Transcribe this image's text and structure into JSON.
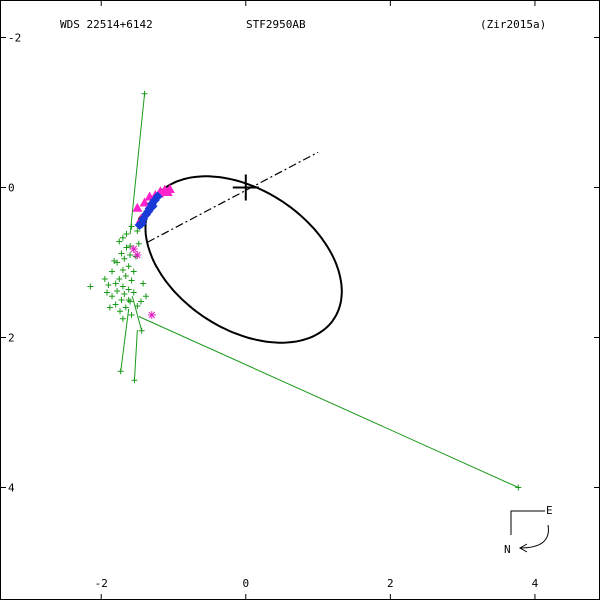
{
  "header": {
    "left": "WDS 22514+6142",
    "center": "STF2950AB",
    "right": "(Zir2015a)"
  },
  "compass": {
    "east": "E",
    "north": "N"
  },
  "chart_data": {
    "type": "scatter",
    "title": "",
    "xlabel": "",
    "ylabel": "",
    "xlim": [
      -3.4,
      4.9
    ],
    "ylim": [
      -2.5,
      5.5
    ],
    "grid": false,
    "x_ticks": [
      {
        "value": -2,
        "label": "-2"
      },
      {
        "value": 0,
        "label": "0"
      },
      {
        "value": 2,
        "label": "2"
      },
      {
        "value": 4,
        "label": "4"
      }
    ],
    "y_ticks": [
      {
        "value": -2,
        "label": "-2"
      },
      {
        "value": 0,
        "label": "0"
      },
      {
        "value": 2,
        "label": "2"
      },
      {
        "value": 4,
        "label": "4"
      }
    ],
    "primary_star": [
      0,
      0
    ],
    "orbit": {
      "center": [
        -0.03,
        0.96
      ],
      "a": 1.48,
      "b": 0.94,
      "angle_deg": 31
    },
    "line_of_nodes": [
      [
        -1.36,
        0.73
      ],
      [
        1.0,
        -0.47
      ]
    ],
    "periastron_line": [
      [
        1.0,
        -0.47
      ],
      [
        -1.36,
        0.73
      ]
    ],
    "outlier_tracks": [
      {
        "obs": [
          -1.4,
          -1.25
        ],
        "fit": [
          -1.6,
          0.62
        ]
      },
      {
        "obs": [
          -1.73,
          2.45
        ],
        "fit": [
          -1.62,
          1.62
        ]
      },
      {
        "obs": [
          -1.54,
          2.57
        ],
        "fit": [
          -1.5,
          1.9
        ]
      },
      {
        "obs": [
          -1.44,
          1.91
        ],
        "fit": [
          -1.57,
          1.45
        ]
      },
      {
        "obs": [
          3.77,
          4.0
        ],
        "fit": [
          -1.48,
          1.72
        ]
      }
    ],
    "micrometer_points": [
      [
        -1.7,
        0.67
      ],
      [
        -1.75,
        0.72
      ],
      [
        -1.65,
        0.8
      ],
      [
        -1.72,
        0.88
      ],
      [
        -1.6,
        0.9
      ],
      [
        -1.68,
        0.95
      ],
      [
        -1.78,
        1.0
      ],
      [
        -1.62,
        1.05
      ],
      [
        -1.7,
        1.1
      ],
      [
        -1.85,
        1.12
      ],
      [
        -1.66,
        1.18
      ],
      [
        -1.75,
        1.22
      ],
      [
        -1.58,
        1.24
      ],
      [
        -1.8,
        1.28
      ],
      [
        -1.9,
        1.3
      ],
      [
        -1.7,
        1.32
      ],
      [
        -1.62,
        1.36
      ],
      [
        -1.78,
        1.38
      ],
      [
        -1.68,
        1.42
      ],
      [
        -1.55,
        1.4
      ],
      [
        -1.85,
        1.45
      ],
      [
        -1.72,
        1.5
      ],
      [
        -1.6,
        1.52
      ],
      [
        -1.8,
        1.56
      ],
      [
        -1.66,
        1.6
      ],
      [
        -1.5,
        1.58
      ],
      [
        -1.74,
        1.65
      ],
      [
        -1.58,
        1.7
      ],
      [
        -1.45,
        1.52
      ],
      [
        -1.52,
        0.92
      ],
      [
        -1.48,
        0.75
      ],
      [
        -1.55,
        1.12
      ],
      [
        -1.42,
        1.28
      ],
      [
        -1.95,
        1.22
      ],
      [
        -2.15,
        1.32
      ],
      [
        -1.82,
        0.98
      ],
      [
        -1.65,
        0.62
      ],
      [
        -1.5,
        0.58
      ],
      [
        -1.58,
        0.52
      ],
      [
        -1.62,
        1.5
      ],
      [
        -1.88,
        1.6
      ],
      [
        -1.7,
        1.75
      ],
      [
        -1.38,
        1.45
      ],
      [
        -1.6,
        0.78
      ],
      [
        -1.92,
        1.4
      ]
    ],
    "interferometric_points": [
      [
        -1.47,
        0.5
      ],
      [
        -1.42,
        0.42
      ],
      [
        -1.38,
        0.36
      ],
      [
        -1.33,
        0.28
      ],
      [
        -1.3,
        0.22
      ],
      [
        -1.26,
        0.17
      ],
      [
        -1.22,
        0.12
      ],
      [
        -1.44,
        0.48
      ],
      [
        -1.35,
        0.32
      ],
      [
        -1.29,
        0.25
      ]
    ],
    "speckle_points": [
      [
        -1.5,
        0.27
      ],
      [
        -1.33,
        0.12
      ],
      [
        -1.2,
        0.08
      ],
      [
        -1.12,
        0.03
      ],
      [
        -1.05,
        0.02
      ],
      [
        -1.4,
        0.2
      ],
      [
        -1.25,
        0.1
      ],
      [
        -1.18,
        0.05
      ],
      [
        -1.45,
        0.42
      ],
      [
        -1.08,
        0.06
      ]
    ],
    "magenta_stars": [
      [
        -1.3,
        1.7
      ],
      [
        -1.55,
        0.82
      ],
      [
        -1.5,
        0.9
      ]
    ],
    "red_points": [
      [
        -1.45,
        0.42
      ],
      [
        -1.4,
        0.38
      ],
      [
        -1.28,
        0.22
      ]
    ]
  }
}
